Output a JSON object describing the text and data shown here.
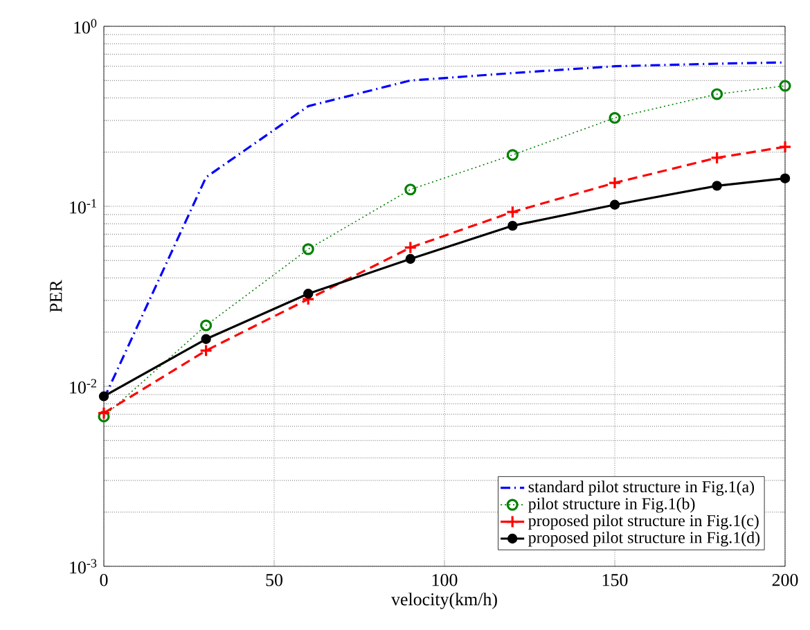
{
  "chart_data": {
    "type": "line",
    "xlabel": "velocity(km/h)",
    "ylabel": "PER",
    "log": "y",
    "grid": true,
    "legend": "bottom right",
    "x": [
      0,
      30,
      60,
      90,
      120,
      150,
      180,
      200
    ],
    "xlim": [
      0,
      200
    ],
    "xticks": [
      0,
      50,
      100,
      150,
      200
    ],
    "ylim": [
      0.001,
      1
    ],
    "yticks": [
      {
        "value": 0.001,
        "label": "10$^{-3}$"
      },
      {
        "value": 0.01,
        "label": "10$^{-2}$"
      },
      {
        "value": 0.1,
        "label": "10$^{-1}$"
      },
      {
        "value": 1,
        "label": "10$^{0}$"
      }
    ],
    "series": [
      {
        "name": "standard pilot structure in Fig.1(a)",
        "color": "#0000ff",
        "line_style": "dashdot",
        "marker": "none",
        "values": [
          0.0085,
          0.145,
          0.36,
          0.5,
          0.55,
          0.6,
          0.62,
          0.63
        ]
      },
      {
        "name": "pilot structure in Fig.1(b)",
        "color": "#008000",
        "line_style": "dotted",
        "marker": "circle",
        "values": [
          0.0068,
          0.0218,
          0.0578,
          0.124,
          0.193,
          0.31,
          0.42,
          0.467
        ]
      },
      {
        "name": "proposed pilot structure in Fig.1(c)",
        "color": "#ff0000",
        "line_style": "dashed",
        "marker": "cross",
        "values": [
          0.0071,
          0.0158,
          0.0305,
          0.059,
          0.093,
          0.135,
          0.186,
          0.214
        ]
      },
      {
        "name": "proposed pilot structure in Fig.1(d)",
        "color": "#000000",
        "line_style": "solid",
        "marker": "filled circle",
        "values": [
          0.0088,
          0.0183,
          0.0327,
          0.051,
          0.078,
          0.102,
          0.13,
          0.143
        ]
      }
    ]
  }
}
